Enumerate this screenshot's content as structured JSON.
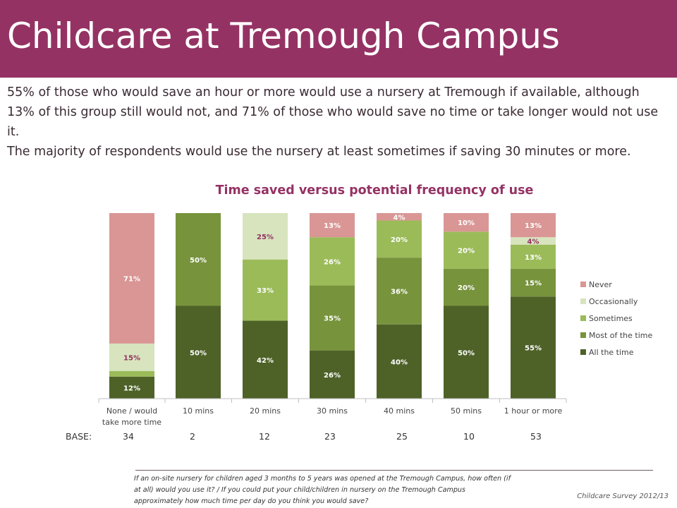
{
  "header": {
    "title": "Childcare at Tremough Campus"
  },
  "intro": {
    "paragraph1": "55% of those who would save an hour or more would use a nursery at Tremough if available, although 13% of this group still would not, and 71% of those who would save no time or take longer would not use it.",
    "paragraph2": "The majority of respondents would use the nursery at least sometimes if saving 30 minutes or more."
  },
  "chart_data": {
    "type": "bar",
    "stacked": true,
    "title": "Time saved versus potential frequency of use",
    "categories": [
      "None / would take more time",
      "10 mins",
      "20 mins",
      "30 mins",
      "40 mins",
      "50 mins",
      "1 hour or more"
    ],
    "series": [
      {
        "name": "All the time",
        "color": "#4e6228",
        "values": [
          12,
          50,
          42,
          26,
          40,
          50,
          55
        ]
      },
      {
        "name": "Most of the time",
        "color": "#77933c",
        "values": [
          0,
          50,
          0,
          35,
          36,
          20,
          15
        ]
      },
      {
        "name": "Sometimes",
        "color": "#9bbb59",
        "values": [
          3,
          0,
          33,
          26,
          20,
          20,
          13
        ]
      },
      {
        "name": "Occasionally",
        "color": "#d7e4bd",
        "values": [
          15,
          0,
          25,
          0,
          0,
          0,
          4
        ]
      },
      {
        "name": "Never",
        "color": "#d99694",
        "values": [
          71,
          0,
          0,
          13,
          4,
          10,
          13
        ]
      }
    ],
    "data_labels": [
      [
        "12%",
        "",
        "",
        "15%",
        "71%"
      ],
      [
        "50%",
        "50%",
        "",
        "",
        ""
      ],
      [
        "42%",
        "",
        "33%",
        "25%",
        ""
      ],
      [
        "26%",
        "35%",
        "26%",
        "",
        "13%"
      ],
      [
        "40%",
        "36%",
        "20%",
        "",
        "4%"
      ],
      [
        "50%",
        "20%",
        "20%",
        "",
        "10%"
      ],
      [
        "55%",
        "15%",
        "13%",
        "4%",
        "13%"
      ]
    ],
    "category_labels": [
      [
        "None / would",
        "take more time"
      ],
      [
        "10 mins"
      ],
      [
        "20 mins"
      ],
      [
        "30 mins"
      ],
      [
        "40 mins"
      ],
      [
        "50 mins"
      ],
      [
        "1 hour or more"
      ]
    ],
    "legend_position": "right",
    "grid": false
  },
  "base": {
    "label": "BASE:",
    "values": [
      "34",
      "2",
      "12",
      "23",
      "25",
      "10",
      "53"
    ]
  },
  "footnote": {
    "line1": "If an on-site nursery for children aged 3 months to 5 years was opened at the Tremough Campus, how often (if",
    "line2": "at all) would you use it? / If you could put your child/children  in nursery on the Tremough Campus",
    "line3": "approximately how much time per day do you think you would save?"
  },
  "source": "Childcare Survey 2012/13"
}
